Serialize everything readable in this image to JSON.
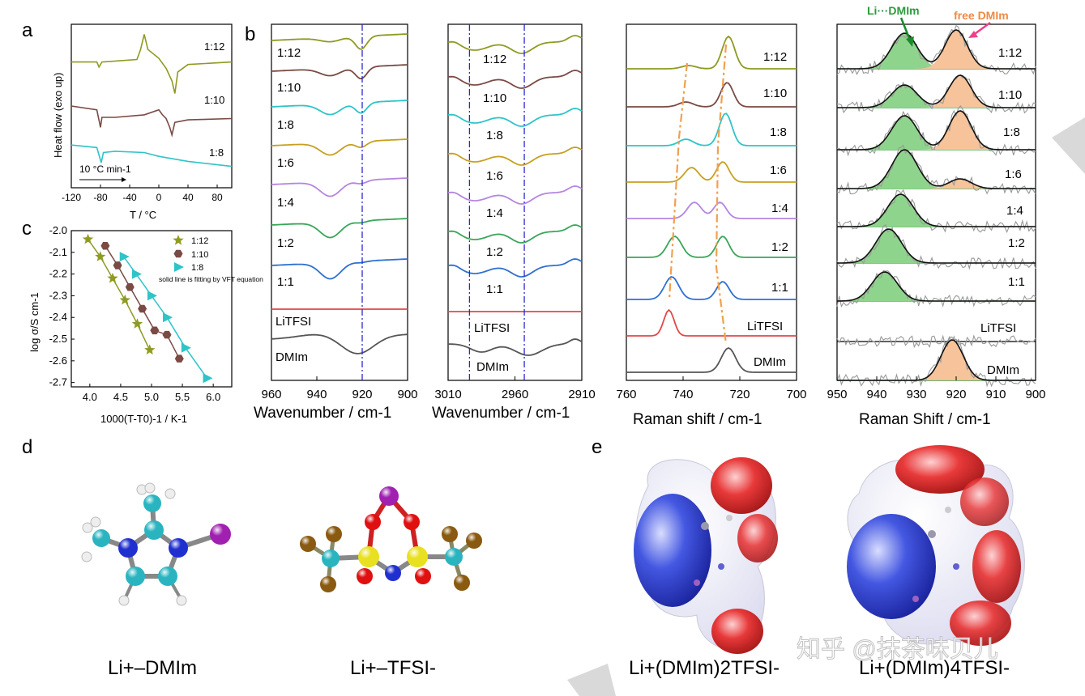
{
  "figure": {
    "panel_letters": [
      "a",
      "b",
      "c",
      "d",
      "e"
    ],
    "watermark": "知乎 @抹茶味贝儿",
    "colors": {
      "1:12": "#8f9a22",
      "1:10": "#7a4a44",
      "1:8": "#2ec4c8",
      "1:6": "#c7a020",
      "1:4": "#b585e0",
      "1:2": "#3aa55a",
      "1:1": "#2f6fd0",
      "LiTFSI": "#e04848",
      "DMIm": "#555555",
      "fit": "#111111",
      "green_fill": "#8fd48c",
      "orange_fill": "#f6c39a",
      "dashdot_blue": "#2a2acc",
      "dashdot_orange": "#f0a050"
    }
  },
  "chart_data": [
    {
      "id": "a",
      "type": "line",
      "title": "",
      "xlabel": "T / °C",
      "ylabel": "Heat flow (exo up)",
      "xlim": [
        -120,
        100
      ],
      "xticks": [
        "-120",
        "-80",
        "-40",
        "0",
        "40",
        "80"
      ],
      "annotation": "10 °C min-1",
      "series": [
        {
          "name": "1:12",
          "x": [
            -120,
            -85,
            -82,
            -78,
            -30,
            -25,
            -20,
            -15,
            0,
            10,
            18,
            22,
            26,
            40,
            100
          ],
          "y": [
            10,
            10,
            9.6,
            10,
            10.2,
            11,
            12.2,
            11,
            10.3,
            9.5,
            8.5,
            7.5,
            9.2,
            9.8,
            10
          ]
        },
        {
          "name": "1:10",
          "x": [
            -120,
            -85,
            -80,
            -78,
            -60,
            -20,
            0,
            5,
            10,
            15,
            18,
            22,
            40,
            100
          ],
          "y": [
            6.5,
            6.2,
            4.8,
            5.6,
            5.6,
            5.8,
            6.2,
            5.8,
            5.5,
            4.8,
            4.2,
            5.2,
            5.4,
            5.5
          ]
        },
        {
          "name": "1:8",
          "x": [
            -120,
            -85,
            -82,
            -79,
            -76,
            -60,
            -20,
            0,
            40,
            100
          ],
          "y": [
            3.4,
            3.2,
            2.6,
            2,
            2.8,
            2.9,
            2.8,
            2.5,
            2.1,
            1.7
          ]
        }
      ]
    },
    {
      "id": "b1",
      "type": "line",
      "xlabel": "Wavenumber / cm-1",
      "xlim": [
        960,
        900
      ],
      "xticks": [
        "960",
        "940",
        "920",
        "900"
      ],
      "marker_line": 920,
      "labels": [
        "1:12",
        "1:10",
        "1:8",
        "1:6",
        "1:4",
        "1:2",
        "1:1",
        "LiTFSI",
        "DMIm"
      ]
    },
    {
      "id": "b2",
      "type": "line",
      "xlabel": "Wavenumber / cm-1",
      "xlim": [
        3010,
        2910
      ],
      "xticks": [
        "3010",
        "2960",
        "2910"
      ],
      "marker_lines": [
        2994,
        2953
      ],
      "labels": [
        "1:12",
        "1:10",
        "1:8",
        "1:6",
        "1:4",
        "1:2",
        "1:1",
        "LiTFSI",
        "DMIm"
      ]
    },
    {
      "id": "b3",
      "type": "line",
      "xlabel": "Raman shift / cm-1",
      "xlim": [
        760,
        700
      ],
      "xticks": [
        "760",
        "740",
        "720",
        "700"
      ],
      "labels": [
        "1:12",
        "1:10",
        "1:8",
        "1:6",
        "1:4",
        "1:2",
        "1:1",
        "LiTFSI",
        "DMIm"
      ]
    },
    {
      "id": "b4",
      "type": "area",
      "xlabel": "Raman Shift / cm-1",
      "xlim": [
        950,
        900
      ],
      "xticks": [
        "950",
        "940",
        "930",
        "920",
        "910",
        "900"
      ],
      "legend": [
        "Li···DMIm",
        "free DMIm"
      ],
      "labels": [
        "1:12",
        "1:10",
        "1:8",
        "1:6",
        "1:4",
        "1:2",
        "1:1",
        "LiTFSI",
        "DMIm"
      ],
      "bound_peak": [
        933,
        933,
        933,
        933,
        934,
        937,
        938,
        0,
        0
      ],
      "free_peak": [
        920,
        919,
        919,
        919,
        0,
        0,
        0,
        0,
        921
      ]
    },
    {
      "id": "c",
      "type": "scatter",
      "xlabel": "1000(T-T0)-1 / K-1",
      "ylabel": "log σ/S cm-1",
      "xlim": [
        3.7,
        6.3
      ],
      "ylim": [
        -2.72,
        -2.0
      ],
      "xticks": [
        "4.0",
        "4.5",
        "5.0",
        "5.5",
        "6.0"
      ],
      "yticks": [
        "-2.0",
        "-2.1",
        "-2.2",
        "-2.3",
        "-2.4",
        "-2.5",
        "-2.6",
        "-2.7"
      ],
      "note": "solid line is fitting by VFT equation",
      "series": [
        {
          "name": "1:12",
          "marker": "star",
          "x": [
            3.97,
            4.17,
            4.37,
            4.57,
            4.77,
            4.97
          ],
          "y": [
            -2.04,
            -2.12,
            -2.22,
            -2.32,
            -2.43,
            -2.55
          ]
        },
        {
          "name": "1:10",
          "marker": "hexagon",
          "x": [
            4.25,
            4.45,
            4.65,
            4.85,
            5.05,
            5.25,
            5.45
          ],
          "y": [
            -2.07,
            -2.16,
            -2.26,
            -2.36,
            -2.46,
            -2.48,
            -2.59
          ]
        },
        {
          "name": "1:8",
          "marker": "triangle",
          "x": [
            4.55,
            4.75,
            5.0,
            5.25,
            5.55,
            5.9
          ],
          "y": [
            -2.12,
            -2.2,
            -2.3,
            -2.4,
            -2.54,
            -2.68
          ]
        }
      ]
    }
  ],
  "panel_d": {
    "captions": [
      "Li+–DMIm",
      "Li+–TFSI-"
    ]
  },
  "panel_e": {
    "captions": [
      "Li+(DMIm)2TFSI-",
      "Li+(DMIm)4TFSI-"
    ]
  }
}
